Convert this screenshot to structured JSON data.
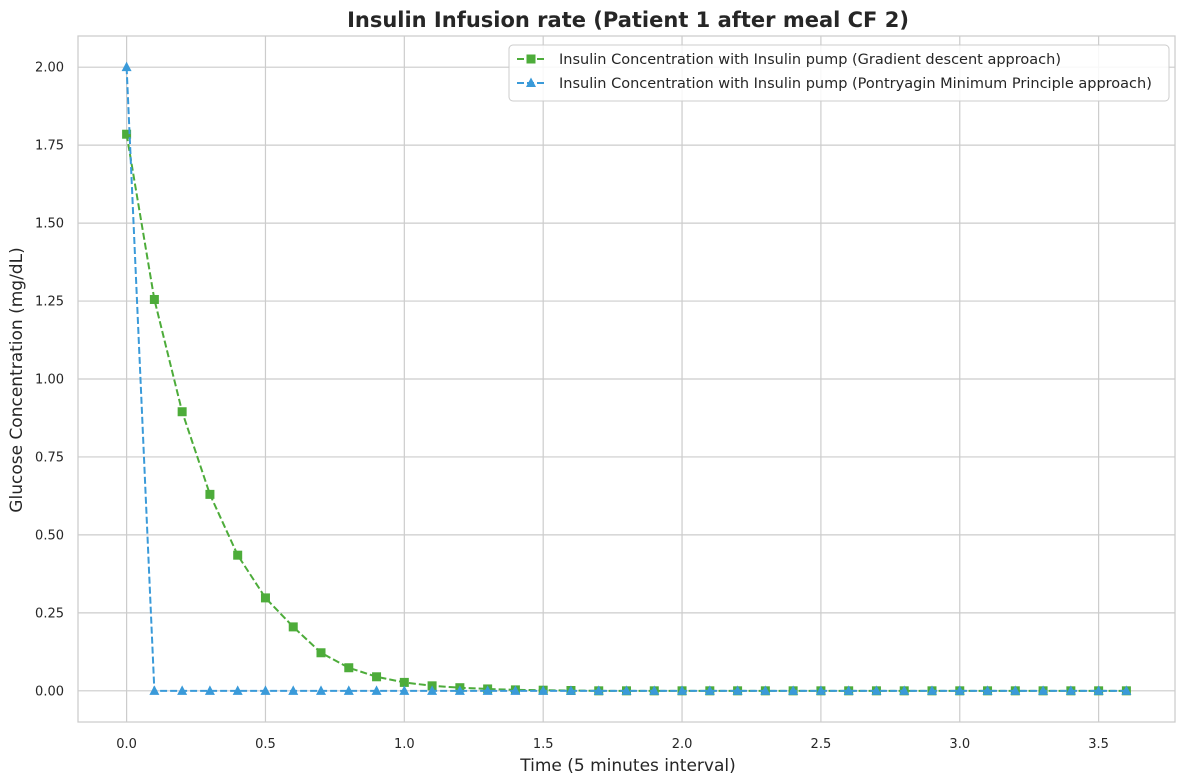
{
  "chart_data": {
    "type": "line",
    "title": "Insulin Infusion rate (Patient 1 after meal CF 2)",
    "xlabel": "Time (5 minutes interval)",
    "ylabel": "Glucose Concentration (mg/dL)",
    "xlim": [
      -0.175,
      3.775
    ],
    "ylim": [
      -0.1,
      2.1
    ],
    "xticks": [
      0.0,
      0.5,
      1.0,
      1.5,
      2.0,
      2.5,
      3.0,
      3.5
    ],
    "xtick_labels": [
      "0.0",
      "0.5",
      "1.0",
      "1.5",
      "2.0",
      "2.5",
      "3.0",
      "3.5"
    ],
    "yticks": [
      0.0,
      0.25,
      0.5,
      0.75,
      1.0,
      1.25,
      1.5,
      1.75,
      2.0
    ],
    "ytick_labels": [
      "0.00",
      "0.25",
      "0.50",
      "0.75",
      "1.00",
      "1.25",
      "1.50",
      "1.75",
      "2.00"
    ],
    "grid": true,
    "legend_position": "top-right",
    "x": [
      0.0,
      0.1,
      0.2,
      0.3,
      0.4,
      0.5,
      0.6,
      0.7,
      0.8,
      0.9,
      1.0,
      1.1,
      1.2,
      1.3,
      1.4,
      1.5,
      1.6,
      1.7,
      1.8,
      1.9,
      2.0,
      2.1,
      2.2,
      2.3,
      2.4,
      2.5,
      2.6,
      2.7,
      2.8,
      2.9,
      3.0,
      3.1,
      3.2,
      3.3,
      3.4,
      3.5,
      3.6
    ],
    "series": [
      {
        "name": "Insulin Concentration with Insulin pump (Gradient descent approach)",
        "color": "#4dac3a",
        "marker": "square",
        "values": [
          1.785,
          1.255,
          0.895,
          0.63,
          0.435,
          0.298,
          0.205,
          0.122,
          0.074,
          0.045,
          0.027,
          0.016,
          0.01,
          0.006,
          0.003,
          0.002,
          0.001,
          0.0,
          0.0,
          0.0,
          0.0,
          0.0,
          0.0,
          0.0,
          0.0,
          0.0,
          0.0,
          0.0,
          0.0,
          0.0,
          0.0,
          0.0,
          0.0,
          0.0,
          0.0,
          0.0,
          0.0
        ]
      },
      {
        "name": "Insulin Concentration with Insulin pump (Pontryagin Minimum Principle approach)",
        "color": "#3a9ad9",
        "marker": "triangle",
        "values": [
          2.0,
          0.0,
          0.0,
          0.0,
          0.0,
          0.0,
          0.0,
          0.0,
          0.0,
          0.0,
          0.0,
          0.0,
          0.0,
          0.0,
          0.0,
          0.0,
          0.0,
          0.0,
          0.0,
          0.0,
          0.0,
          0.0,
          0.0,
          0.0,
          0.0,
          0.0,
          0.0,
          0.0,
          0.0,
          0.0,
          0.0,
          0.0,
          0.0,
          0.0,
          0.0,
          0.0,
          0.0
        ]
      }
    ]
  }
}
